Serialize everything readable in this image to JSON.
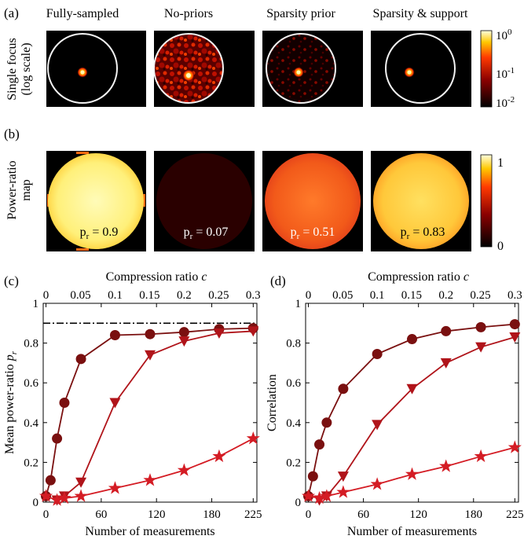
{
  "panel_labels": {
    "a": "(a)",
    "b": "(b)",
    "c": "(c)",
    "d": "(d)"
  },
  "column_titles": [
    "Fully-sampled",
    "No-priors",
    "Sparsity prior",
    "Sparsity & support"
  ],
  "row_a_ylabel": {
    "line1": "Single focus",
    "line2": "(log scale)"
  },
  "row_b_ylabel": {
    "line1": "Power-ratio",
    "line2": "map"
  },
  "colorbar_a": {
    "ticks": [
      {
        "base": "10",
        "exp": "0"
      },
      {
        "base": "10",
        "exp": "-1"
      },
      {
        "base": "10",
        "exp": "-2"
      }
    ]
  },
  "colorbar_b": {
    "ticks": [
      "1",
      "0"
    ]
  },
  "pr_labels": [
    {
      "var": "p",
      "sub": "r",
      "val": " = 0.9"
    },
    {
      "var": "p",
      "sub": "r",
      "val": " = 0.07"
    },
    {
      "var": "p",
      "sub": "r",
      "val": " = 0.51"
    },
    {
      "var": "p",
      "sub": "r",
      "val": " = 0.83"
    }
  ],
  "colors": {
    "dark_red": "#7a1010",
    "mid_red": "#b0141a",
    "bright_red": "#d41c24",
    "yellow": "#fff8a0",
    "black": "#000000"
  },
  "chart_data": [
    {
      "type": "line",
      "panel": "(c)",
      "xlabel": "Number of measurements",
      "top_xlabel": {
        "text": "Compression ratio ",
        "var": "c"
      },
      "ylabel": {
        "text": "Mean power-ratio ",
        "var": "p",
        "sub": "r"
      },
      "x_ticks": [
        0,
        60,
        120,
        180,
        225
      ],
      "top_ticks": [
        "0",
        "0.05",
        "0.1",
        "0.15",
        "0.2",
        "0.25",
        "0.3"
      ],
      "y_ticks": [
        "0",
        "0.2",
        "0.4",
        "0.6",
        "0.8",
        "1"
      ],
      "xlim": [
        -3,
        229
      ],
      "ylim": [
        0,
        1
      ],
      "reference_line": 0.9,
      "series": [
        {
          "marker": "circle",
          "color": "#7a1010",
          "x": [
            0,
            5,
            12,
            20,
            38,
            75,
            113,
            150,
            188,
            225
          ],
          "y": [
            0.03,
            0.11,
            0.32,
            0.5,
            0.72,
            0.84,
            0.845,
            0.855,
            0.87,
            0.875
          ]
        },
        {
          "marker": "triangle",
          "color": "#b0141a",
          "x": [
            12,
            20,
            38,
            75,
            113,
            150,
            188,
            225
          ],
          "y": [
            0.01,
            0.03,
            0.1,
            0.5,
            0.74,
            0.81,
            0.85,
            0.86
          ]
        },
        {
          "marker": "star",
          "color": "#d41c24",
          "x": [
            0,
            12,
            20,
            38,
            75,
            113,
            150,
            188,
            225
          ],
          "y": [
            0.03,
            0.01,
            0.02,
            0.03,
            0.07,
            0.11,
            0.16,
            0.23,
            0.32
          ]
        }
      ]
    },
    {
      "type": "line",
      "panel": "(d)",
      "xlabel": "Number of measurements",
      "top_xlabel": {
        "text": "Compression ratio ",
        "var": "c"
      },
      "ylabel": {
        "text": "Correlation",
        "var": "",
        "sub": ""
      },
      "x_ticks": [
        0,
        60,
        120,
        180,
        225
      ],
      "top_ticks": [
        "0",
        "0.05",
        "0.1",
        "0.15",
        "0.2",
        "0.25",
        "0.3"
      ],
      "y_ticks": [
        "0",
        "0.2",
        "0.4",
        "0.6",
        "0.8",
        "1"
      ],
      "xlim": [
        -3,
        229
      ],
      "ylim": [
        0,
        1
      ],
      "series": [
        {
          "marker": "circle",
          "color": "#7a1010",
          "x": [
            0,
            5,
            12,
            20,
            38,
            75,
            113,
            150,
            188,
            225
          ],
          "y": [
            0.03,
            0.13,
            0.29,
            0.4,
            0.57,
            0.745,
            0.82,
            0.86,
            0.88,
            0.895
          ]
        },
        {
          "marker": "triangle",
          "color": "#b0141a",
          "x": [
            12,
            20,
            38,
            75,
            113,
            150,
            188,
            225
          ],
          "y": [
            0.01,
            0.03,
            0.13,
            0.39,
            0.57,
            0.7,
            0.78,
            0.83
          ]
        },
        {
          "marker": "star",
          "color": "#d41c24",
          "x": [
            0,
            12,
            20,
            38,
            75,
            113,
            150,
            188,
            225
          ],
          "y": [
            0.03,
            0.02,
            0.03,
            0.05,
            0.09,
            0.14,
            0.18,
            0.23,
            0.275
          ]
        }
      ]
    }
  ]
}
